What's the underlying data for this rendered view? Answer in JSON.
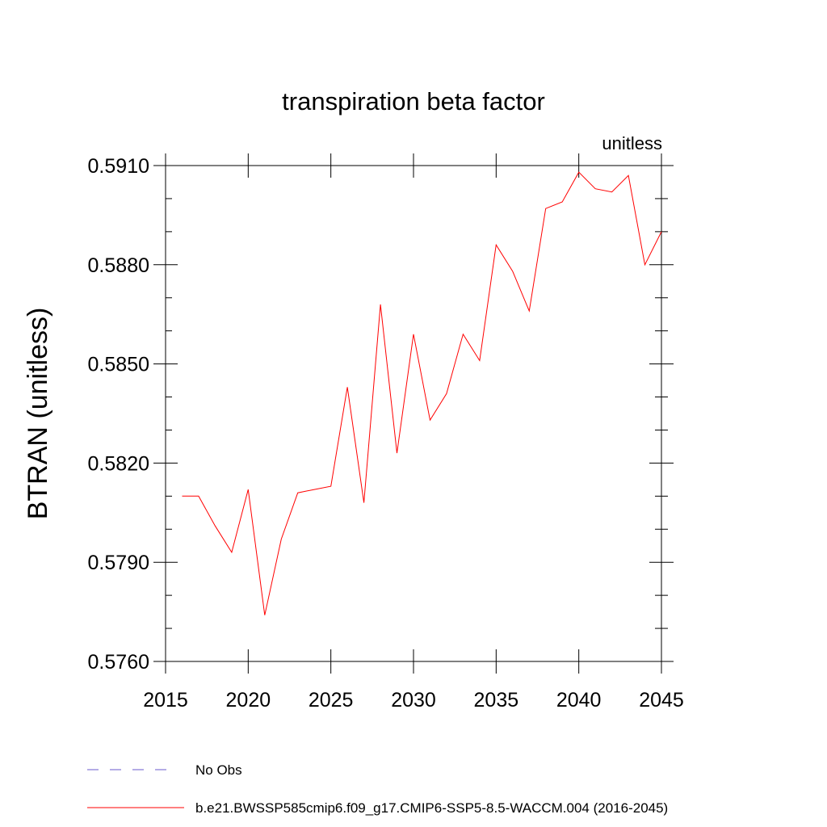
{
  "chart_data": {
    "type": "line",
    "title": "transpiration beta factor",
    "subtitle_right": "unitless",
    "xlabel": "",
    "ylabel": "BTRAN  (unitless)",
    "xlim": [
      2015,
      2045
    ],
    "ylim": [
      0.576,
      0.591
    ],
    "x_ticks": [
      2015,
      2020,
      2025,
      2030,
      2035,
      2040,
      2045
    ],
    "x_tick_labels": [
      "2015",
      "2020",
      "2025",
      "2030",
      "2035",
      "2040",
      "2045"
    ],
    "y_ticks": [
      0.576,
      0.579,
      0.582,
      0.585,
      0.588,
      0.591
    ],
    "y_tick_labels": [
      "0.5760",
      "0.5790",
      "0.5820",
      "0.5850",
      "0.5880",
      "0.5910"
    ],
    "y_minor_step": 0.001,
    "x_minor_step": 1,
    "grid": false,
    "series": [
      {
        "name": "b.e21.BWSSP585cmip6.f09_g17.CMIP6-SSP5-8.5-WACCM.004 (2016-2045)",
        "color": "#ff0000",
        "style": "solid",
        "x": [
          2016,
          2017,
          2018,
          2019,
          2020,
          2021,
          2022,
          2023,
          2024,
          2025,
          2026,
          2027,
          2028,
          2029,
          2030,
          2031,
          2032,
          2033,
          2034,
          2035,
          2036,
          2037,
          2038,
          2039,
          2040,
          2041,
          2042,
          2043,
          2044,
          2045
        ],
        "values": [
          0.581,
          0.581,
          0.5801,
          0.5793,
          0.5812,
          0.5774,
          0.5797,
          0.5811,
          0.5812,
          0.5813,
          0.5843,
          0.5808,
          0.5868,
          0.5823,
          0.5859,
          0.5833,
          0.5841,
          0.5859,
          0.5851,
          0.5886,
          0.5878,
          0.5866,
          0.5897,
          0.5899,
          0.5908,
          0.5903,
          0.5902,
          0.5907,
          0.588,
          0.589
        ]
      }
    ],
    "legend": [
      {
        "label": "No Obs",
        "color": "#6a5acd",
        "style": "dashed"
      },
      {
        "label": "b.e21.BWSSP585cmip6.f09_g17.CMIP6-SSP5-8.5-WACCM.004 (2016-2045)",
        "color": "#ff0000",
        "style": "solid"
      }
    ],
    "legend_position": "bottom"
  }
}
